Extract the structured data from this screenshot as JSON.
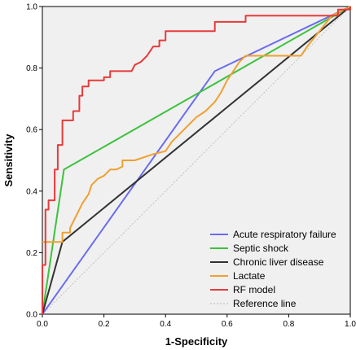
{
  "chart_data": {
    "type": "line",
    "title": "",
    "xlabel": "1-Specificity",
    "ylabel": "Sensitivity",
    "xlim": [
      0,
      1
    ],
    "ylim": [
      0,
      1
    ],
    "xticks": [
      "0.0",
      "0.2",
      "0.4",
      "0.6",
      "0.8",
      "1.0"
    ],
    "yticks": [
      "0.0",
      "0.2",
      "0.4",
      "0.6",
      "0.8",
      "1.0"
    ],
    "grid": false,
    "legend_position": "bottom-right",
    "series": [
      {
        "name": "Acute respiratory failure",
        "color": "#6b6bf0",
        "x": [
          0,
          0.56,
          1.0
        ],
        "y": [
          0,
          0.79,
          1.0
        ]
      },
      {
        "name": "Septic shock",
        "color": "#3ec13e",
        "x": [
          0,
          0.07,
          1.0
        ],
        "y": [
          0,
          0.47,
          1.0
        ]
      },
      {
        "name": "Chronic liver disease",
        "color": "#333333",
        "x": [
          0,
          0.065,
          1.0
        ],
        "y": [
          0,
          0.235,
          1.0
        ]
      },
      {
        "name": "Lactate",
        "color": "#f0a030",
        "x": [
          0,
          0.065,
          0.065,
          0.09,
          0.09,
          0.11,
          0.13,
          0.15,
          0.16,
          0.18,
          0.2,
          0.22,
          0.24,
          0.26,
          0.26,
          0.28,
          0.3,
          0.33,
          0.36,
          0.4,
          0.42,
          0.44,
          0.46,
          0.48,
          0.5,
          0.53,
          0.56,
          0.58,
          0.6,
          0.62,
          0.64,
          0.66,
          0.7,
          0.75,
          0.8,
          0.84,
          0.86,
          0.9,
          0.94,
          1.0
        ],
        "y": [
          0.235,
          0.235,
          0.265,
          0.265,
          0.28,
          0.32,
          0.36,
          0.39,
          0.42,
          0.44,
          0.45,
          0.47,
          0.47,
          0.48,
          0.5,
          0.5,
          0.5,
          0.51,
          0.52,
          0.53,
          0.56,
          0.58,
          0.6,
          0.62,
          0.64,
          0.66,
          0.69,
          0.72,
          0.76,
          0.79,
          0.82,
          0.84,
          0.84,
          0.84,
          0.84,
          0.84,
          0.87,
          0.92,
          0.97,
          1.0
        ]
      },
      {
        "name": "RF model",
        "color": "#e83a3a",
        "x": [
          0,
          0,
          0.01,
          0.01,
          0.02,
          0.02,
          0.04,
          0.04,
          0.05,
          0.05,
          0.065,
          0.065,
          0.1,
          0.1,
          0.12,
          0.12,
          0.13,
          0.13,
          0.15,
          0.15,
          0.2,
          0.2,
          0.22,
          0.22,
          0.25,
          0.25,
          0.29,
          0.3,
          0.32,
          0.34,
          0.36,
          0.38,
          0.38,
          0.4,
          0.4,
          0.56,
          0.56,
          0.66,
          0.66,
          0.96,
          0.96,
          1.0,
          1.0
        ],
        "y": [
          0,
          0.16,
          0.16,
          0.34,
          0.34,
          0.37,
          0.37,
          0.47,
          0.47,
          0.55,
          0.55,
          0.63,
          0.63,
          0.66,
          0.66,
          0.71,
          0.71,
          0.74,
          0.74,
          0.76,
          0.76,
          0.77,
          0.77,
          0.79,
          0.79,
          0.79,
          0.79,
          0.81,
          0.82,
          0.84,
          0.87,
          0.87,
          0.89,
          0.89,
          0.92,
          0.92,
          0.95,
          0.95,
          0.97,
          0.97,
          0.99,
          0.99,
          1.0
        ]
      },
      {
        "name": "Reference line",
        "color": "#c0c0c0",
        "dashed": true,
        "x": [
          0,
          1
        ],
        "y": [
          0,
          1
        ]
      }
    ]
  }
}
